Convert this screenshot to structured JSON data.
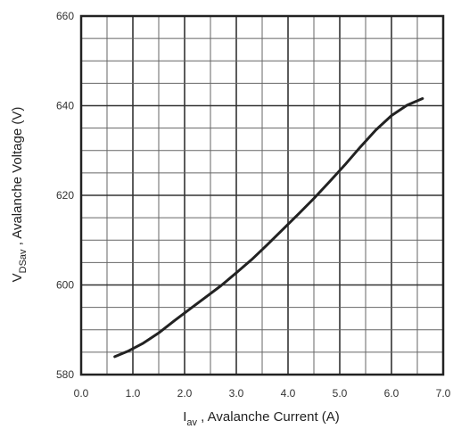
{
  "chart_data": {
    "type": "line",
    "title": "",
    "xlabel": {
      "main": "I",
      "sub": "av",
      "rest": " , Avalanche Current  (A)"
    },
    "ylabel": {
      "main": "V",
      "sub": "DSav",
      "rest": " , Avalanche Voltage (V)"
    },
    "xlim": [
      0.0,
      7.0
    ],
    "ylim": [
      580,
      660
    ],
    "x_ticks": [
      "0.0",
      "1.0",
      "2.0",
      "3.0",
      "4.0",
      "5.0",
      "6.0",
      "7.0"
    ],
    "y_ticks": [
      "580",
      "600",
      "620",
      "640",
      "660"
    ],
    "grid": true,
    "x_minor_step": 0.5,
    "y_minor_step": 5,
    "series": [
      {
        "x": [
          0.65,
          0.9,
          1.2,
          1.5,
          1.8,
          2.1,
          2.4,
          2.7,
          3.0,
          3.3,
          3.6,
          3.9,
          4.2,
          4.5,
          4.8,
          5.1,
          5.4,
          5.7,
          6.0,
          6.3,
          6.6
        ],
        "y": [
          584.0,
          585.2,
          587.0,
          589.3,
          592.0,
          594.6,
          597.2,
          599.8,
          602.7,
          605.7,
          609.0,
          612.4,
          615.8,
          619.3,
          623.0,
          626.8,
          630.8,
          634.6,
          637.8,
          640.1,
          641.6
        ]
      }
    ]
  }
}
